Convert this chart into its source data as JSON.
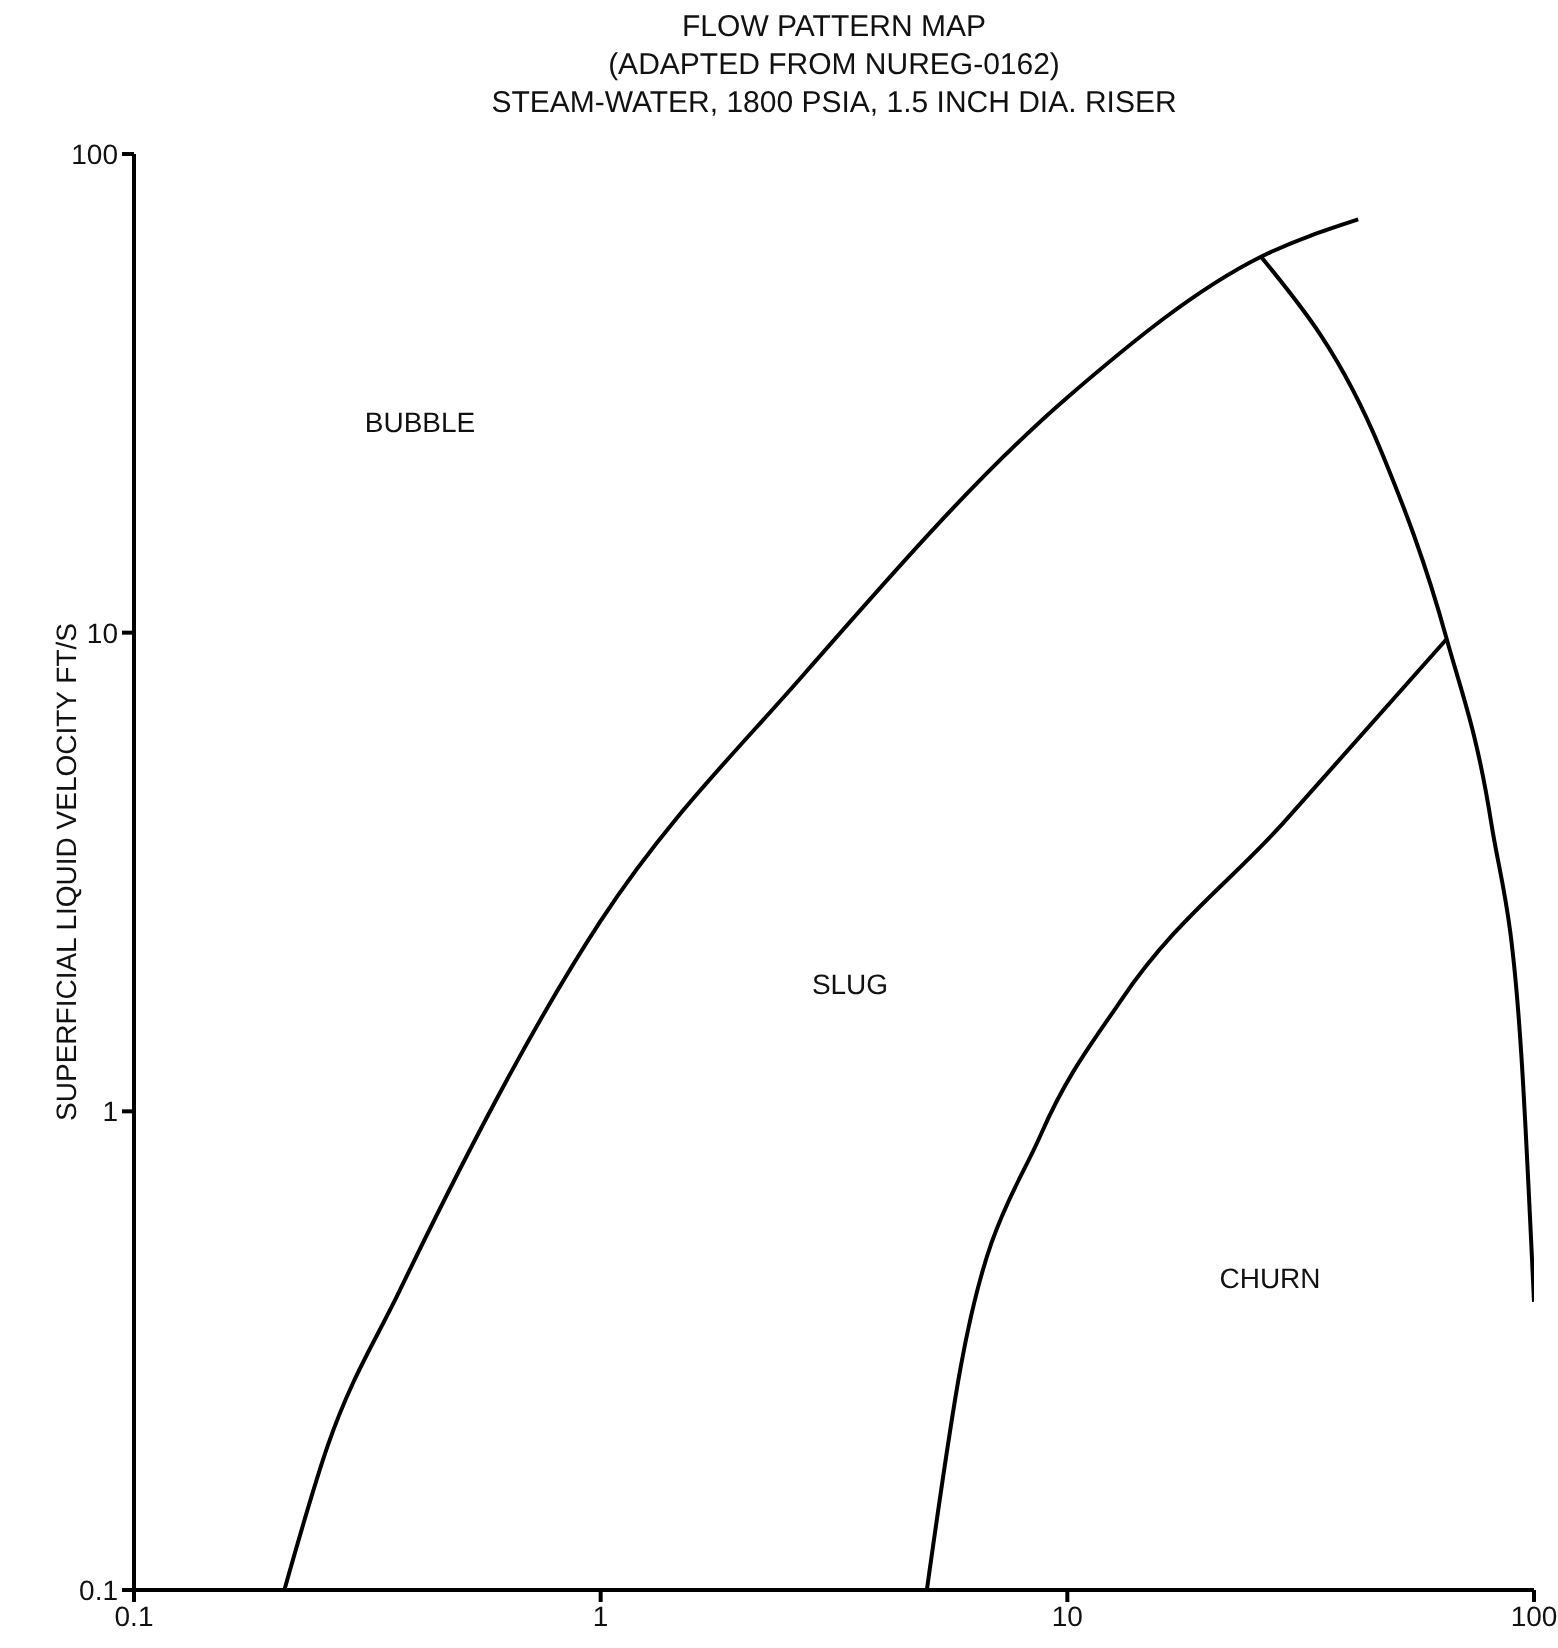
{
  "chart_data": {
    "type": "line",
    "title": "FLOW PATTERN MAP",
    "subtitle": "(ADAPTED FROM NUREG-0162)\nSTEAM-WATER, 1800 PSIA, 1.5 INCH DIA. RISER",
    "ylabel": "SUPERFICIAL LIQUID VELOCITY FT/S",
    "log": "xy",
    "xlim": [
      0.1,
      100
    ],
    "xticks": [
      0.1,
      1,
      10,
      100
    ],
    "ylim": [
      0.1,
      100
    ],
    "yticks": [
      0.1,
      1,
      10,
      100
    ],
    "grid": false,
    "legend": false,
    "marker": "none",
    "line_style": "solid",
    "series": [
      {
        "color": "#000000",
        "x": [
          0.21,
          0.26,
          0.37,
          1,
          2.7,
          10,
          26,
          42
        ],
        "values": [
          0.1,
          0.2,
          0.42,
          2.5,
          8.1,
          31,
          61,
          73
        ]
      },
      {
        "color": "#000000",
        "x": [
          5,
          5.9,
          8.8,
          13,
          29,
          65
        ],
        "values": [
          0.1,
          0.29,
          0.9,
          1.7,
          4,
          9.7
        ]
      },
      {
        "color": "#000000",
        "x": [
          26,
          47,
          65,
          81,
          94,
          100
        ],
        "values": [
          61,
          24,
          9.7,
          4,
          1.3,
          0.4
        ]
      }
    ],
    "annotations": [
      "BUBBLE",
      "SLUG",
      "CHURN"
    ]
  }
}
